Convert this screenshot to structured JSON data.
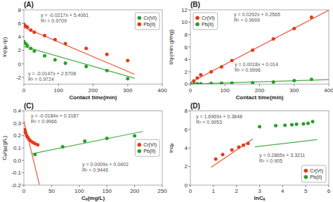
{
  "chart_data": [
    {
      "type": "scatter",
      "title": "(A)",
      "xlabel": "Contact time(min)",
      "ylabel": "ln(qₑ-qₜ)",
      "series": [
        {
          "type": "scatter",
          "name": "Cr(VI)",
          "color": "#28a028",
          "x": [
            0,
            5,
            10,
            20,
            30,
            60,
            90,
            120,
            180,
            240,
            300
          ],
          "values": [
            3.3,
            3.0,
            2.7,
            2.3,
            1.9,
            1.2,
            0.6,
            0.1,
            -0.4,
            -1.0,
            -2.2
          ]
        },
        {
          "type": "scatter",
          "name": "Pb(II)",
          "color": "#e8381a",
          "x": [
            0,
            5,
            10,
            20,
            30,
            60,
            90,
            120,
            180,
            240,
            300
          ],
          "values": [
            5.85,
            5.6,
            5.45,
            5.0,
            4.7,
            4.2,
            3.6,
            3.0,
            2.3,
            1.4,
            0.5
          ]
        },
        {
          "type": "line",
          "color": "#28a028",
          "x": [
            0,
            320
          ],
          "values": [
            2.5708,
            -2.1332
          ]
        },
        {
          "type": "line",
          "color": "#e8381a",
          "x": [
            0,
            320
          ],
          "values": [
            5.4061,
            -1.5379
          ]
        }
      ],
      "annotations": [
        [
          "y = -0.0147x + 2.5708",
          "R² = 0.9724"
        ],
        [
          "y = -0.0217x + 5.4061",
          "R² = 0.9709"
        ]
      ],
      "legend": "upper right",
      "xlim": [
        0,
        400
      ],
      "ylim": [
        -3,
        8
      ],
      "xticks": [
        0,
        100,
        200,
        300,
        400
      ],
      "yticks": [
        -2,
        0,
        2,
        4,
        6,
        8
      ]
    },
    {
      "type": "scatter",
      "title": "(B)",
      "xlabel": "Contact time(min)",
      "ylabel": "t/qₜ(min·g/mg)",
      "series": [
        {
          "type": "scatter",
          "name": "Cr(VI)",
          "color": "#e8381a",
          "x": [
            0,
            10,
            20,
            30,
            60,
            90,
            120,
            180,
            240,
            300,
            350
          ],
          "values": [
            0.0,
            0.5,
            1.0,
            1.5,
            2.0,
            2.8,
            3.8,
            5.5,
            7.3,
            9.0,
            10.8
          ]
        },
        {
          "type": "scatter",
          "name": "Pb(II)",
          "color": "#28a028",
          "x": [
            0,
            10,
            20,
            30,
            60,
            90,
            120,
            180,
            240,
            300,
            350
          ],
          "values": [
            0.0,
            0.03,
            0.05,
            0.07,
            0.1,
            0.13,
            0.16,
            0.22,
            0.35,
            0.58,
            0.78
          ]
        },
        {
          "type": "line",
          "color": "#e8381a",
          "x": [
            0,
            400
          ],
          "values": [
            0.2565,
            11.9365
          ]
        },
        {
          "type": "line",
          "color": "#28a028",
          "x": [
            0,
            400
          ],
          "values": [
            0.014,
            0.734
          ]
        }
      ],
      "annotations": [
        [
          "y = 0.0292x + 0.2565",
          "R² = 0.9999"
        ],
        [
          "y = 0.0018x + 0.014",
          "R² = 0.9996"
        ]
      ],
      "legend": "upper left",
      "xlim": [
        0,
        400
      ],
      "ylim": [
        0,
        12
      ],
      "xticks": [
        0,
        100,
        200,
        300,
        400
      ],
      "yticks": [
        0,
        2,
        4,
        6,
        8,
        10,
        12
      ]
    },
    {
      "type": "scatter",
      "title": "(C)",
      "xlabel": "Cₑ(mg/L)",
      "ylabel": "Cₑ/qₑ(g/L)",
      "series": [
        {
          "type": "scatter",
          "name": "Cr(VI)",
          "color": "#e8381a",
          "x": [
            1,
            2,
            3,
            5,
            7,
            9,
            12,
            16,
            20,
            25
          ],
          "values": [
            0.248,
            0.235,
            0.222,
            0.2,
            0.185,
            0.172,
            0.158,
            0.145,
            0.135,
            0.125
          ]
        },
        {
          "type": "scatter",
          "name": "Pb(II)",
          "color": "#28a028",
          "x": [
            20,
            70,
            110,
            150,
            200
          ],
          "values": [
            0.047,
            0.11,
            0.155,
            0.178,
            0.198
          ]
        },
        {
          "type": "line",
          "color": "#e8381a",
          "x": [
            0,
            28
          ],
          "values": [
            0.3187,
            -0.1965
          ]
        },
        {
          "type": "line",
          "color": "#28a028",
          "x": [
            15,
            215
          ],
          "values": [
            0.0537,
            0.2337
          ]
        }
      ],
      "annotations": [
        [
          "y = -0.0184x + 0.3187",
          "R² = 0.9966"
        ],
        [
          "y = 0.0009x + 0.0402",
          "R² = 0.9446"
        ]
      ],
      "legend": "center right",
      "xlim": [
        0,
        250
      ],
      "ylim": [
        -0.2,
        0.4
      ],
      "xticks": [
        0,
        50,
        100,
        150,
        200,
        250
      ],
      "yticks": [
        -0.2,
        -0.1,
        {
          "value": 0,
          "label": "0.0"
        },
        0.1,
        0.2,
        0.3,
        0.4
      ]
    },
    {
      "type": "scatter",
      "title": "(D)",
      "xlabel": "lnCₑ",
      "ylabel": "lnqₑ",
      "series": [
        {
          "type": "scatter",
          "name": "Cr(VI)",
          "color": "#e8381a",
          "x": [
            1.1,
            1.4,
            1.8,
            2.1,
            2.3,
            2.5
          ],
          "values": [
            2.8,
            3.3,
            3.8,
            4.1,
            4.3,
            4.5
          ]
        },
        {
          "type": "scatter",
          "name": "Pb(II)",
          "color": "#28a028",
          "x": [
            3.0,
            3.7,
            4.1,
            4.4,
            4.6,
            4.9,
            5.1,
            5.3
          ],
          "values": [
            6.3,
            6.4,
            6.45,
            6.5,
            6.55,
            6.6,
            6.65,
            6.85
          ]
        },
        {
          "type": "line",
          "color": "#e8381a",
          "x": [
            0.9,
            2.7
          ],
          "values": [
            1.91201,
            4.96643
          ]
        },
        {
          "type": "line",
          "color": "#28a028",
          "x": [
            2.8,
            5.5
          ],
          "values": [
            4.1233,
            4.89685
          ]
        }
      ],
      "annotations": [
        [
          "y = 1.6969x + 0.3848",
          "R² = 0.9953"
        ],
        [
          "y = 0.2865x + 3.3211",
          "R² = 0.905"
        ]
      ],
      "legend": "lower right",
      "xlim": [
        0,
        6
      ],
      "ylim": [
        0,
        8
      ],
      "xticks": [
        0,
        1,
        2,
        3,
        4,
        5,
        6
      ],
      "yticks": [
        0,
        2,
        4,
        6,
        8
      ]
    }
  ]
}
